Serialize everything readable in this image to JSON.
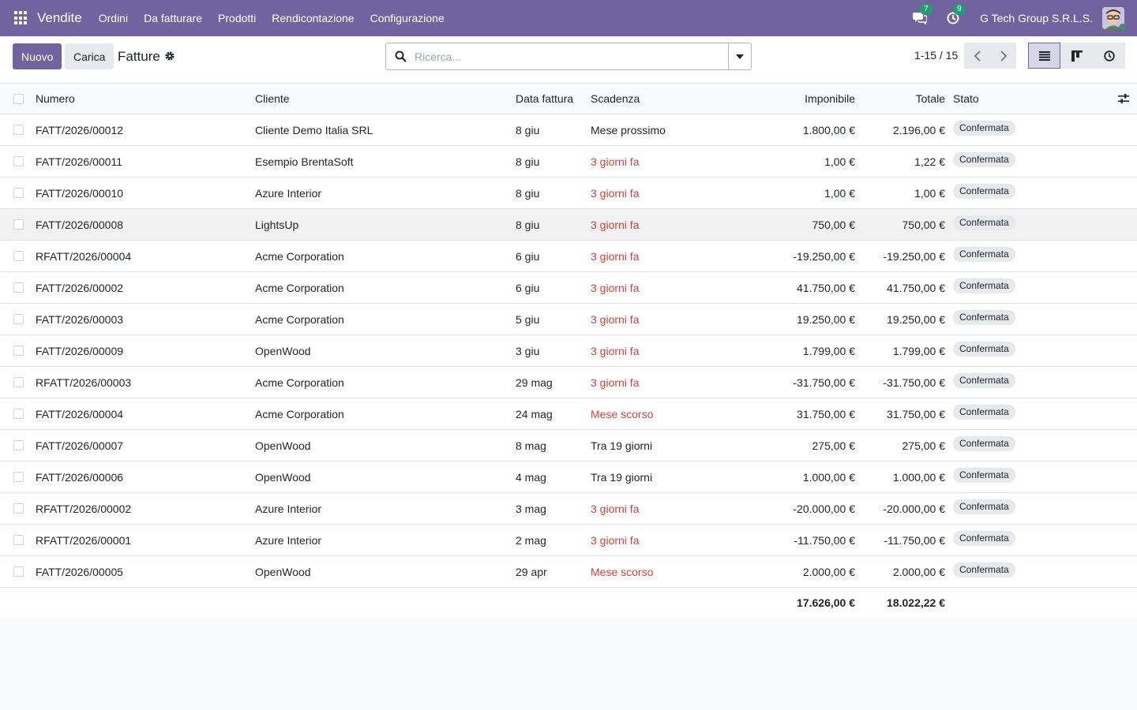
{
  "navbar": {
    "app_name": "Vendite",
    "menu": [
      "Ordini",
      "Da fatturare",
      "Prodotti",
      "Rendicontazione",
      "Configurazione"
    ],
    "messages_count": "7",
    "activities_count": "9",
    "company": "G Tech Group S.R.L.S."
  },
  "control": {
    "new_label": "Nuovo",
    "upload_label": "Carica",
    "title": "Fatture",
    "search_placeholder": "Ricerca...",
    "pager": "1-15 / 15"
  },
  "table": {
    "headers": {
      "numero": "Numero",
      "cliente": "Cliente",
      "data": "Data fattura",
      "scadenza": "Scadenza",
      "imponibile": "Imponibile",
      "totale": "Totale",
      "stato": "Stato"
    },
    "rows": [
      {
        "numero": "FATT/2026/00012",
        "cliente": "Cliente Demo Italia SRL",
        "data": "8 giu",
        "scadenza": "Mese prossimo",
        "overdue": false,
        "imponibile": "1.800,00 €",
        "totale": "2.196,00 €",
        "stato": "Confermata"
      },
      {
        "numero": "FATT/2026/00011",
        "cliente": "Esempio BrentaSoft",
        "data": "8 giu",
        "scadenza": "3 giorni fa",
        "overdue": true,
        "imponibile": "1,00 €",
        "totale": "1,22 €",
        "stato": "Confermata"
      },
      {
        "numero": "FATT/2026/00010",
        "cliente": "Azure Interior",
        "data": "8 giu",
        "scadenza": "3 giorni fa",
        "overdue": true,
        "imponibile": "1,00 €",
        "totale": "1,00 €",
        "stato": "Confermata"
      },
      {
        "numero": "FATT/2026/00008",
        "cliente": "LightsUp",
        "data": "8 giu",
        "scadenza": "3 giorni fa",
        "overdue": true,
        "imponibile": "750,00 €",
        "totale": "750,00 €",
        "stato": "Confermata"
      },
      {
        "numero": "RFATT/2026/00004",
        "cliente": "Acme Corporation",
        "data": "6 giu",
        "scadenza": "3 giorni fa",
        "overdue": true,
        "imponibile": "-19.250,00 €",
        "totale": "-19.250,00 €",
        "stato": "Confermata"
      },
      {
        "numero": "FATT/2026/00002",
        "cliente": "Acme Corporation",
        "data": "6 giu",
        "scadenza": "3 giorni fa",
        "overdue": true,
        "imponibile": "41.750,00 €",
        "totale": "41.750,00 €",
        "stato": "Confermata"
      },
      {
        "numero": "FATT/2026/00003",
        "cliente": "Acme Corporation",
        "data": "5 giu",
        "scadenza": "3 giorni fa",
        "overdue": true,
        "imponibile": "19.250,00 €",
        "totale": "19.250,00 €",
        "stato": "Confermata"
      },
      {
        "numero": "FATT/2026/00009",
        "cliente": "OpenWood",
        "data": "3 giu",
        "scadenza": "3 giorni fa",
        "overdue": true,
        "imponibile": "1.799,00 €",
        "totale": "1.799,00 €",
        "stato": "Confermata"
      },
      {
        "numero": "RFATT/2026/00003",
        "cliente": "Acme Corporation",
        "data": "29 mag",
        "scadenza": "3 giorni fa",
        "overdue": true,
        "imponibile": "-31.750,00 €",
        "totale": "-31.750,00 €",
        "stato": "Confermata"
      },
      {
        "numero": "FATT/2026/00004",
        "cliente": "Acme Corporation",
        "data": "24 mag",
        "scadenza": "Mese scorso",
        "overdue": true,
        "imponibile": "31.750,00 €",
        "totale": "31.750,00 €",
        "stato": "Confermata"
      },
      {
        "numero": "FATT/2026/00007",
        "cliente": "OpenWood",
        "data": "8 mag",
        "scadenza": "Tra 19 giorni",
        "overdue": false,
        "imponibile": "275,00 €",
        "totale": "275,00 €",
        "stato": "Confermata"
      },
      {
        "numero": "FATT/2026/00006",
        "cliente": "OpenWood",
        "data": "4 mag",
        "scadenza": "Tra 19 giorni",
        "overdue": false,
        "imponibile": "1.000,00 €",
        "totale": "1.000,00 €",
        "stato": "Confermata"
      },
      {
        "numero": "RFATT/2026/00002",
        "cliente": "Azure Interior",
        "data": "3 mag",
        "scadenza": "3 giorni fa",
        "overdue": true,
        "imponibile": "-20.000,00 €",
        "totale": "-20.000,00 €",
        "stato": "Confermata"
      },
      {
        "numero": "RFATT/2026/00001",
        "cliente": "Azure Interior",
        "data": "2 mag",
        "scadenza": "3 giorni fa",
        "overdue": true,
        "imponibile": "-11.750,00 €",
        "totale": "-11.750,00 €",
        "stato": "Confermata"
      },
      {
        "numero": "FATT/2026/00005",
        "cliente": "OpenWood",
        "data": "29 apr",
        "scadenza": "Mese scorso",
        "overdue": true,
        "imponibile": "2.000,00 €",
        "totale": "2.000,00 €",
        "stato": "Confermata"
      }
    ],
    "totals": {
      "imponibile": "17.626,00 €",
      "totale": "18.022,22 €"
    }
  },
  "colors": {
    "brand": "#71639e",
    "overdue": "#d23f3a",
    "badge": "#1d9f6f"
  },
  "icons": {
    "apps": "apps-grid-icon",
    "messages": "chat-bubbles-icon",
    "activities": "clock-icon",
    "settings": "gear-icon",
    "search": "search-icon",
    "list_view": "list-view-icon",
    "kanban_view": "kanban-view-icon",
    "activity_view": "activity-view-icon",
    "optional_columns": "sliders-icon"
  }
}
